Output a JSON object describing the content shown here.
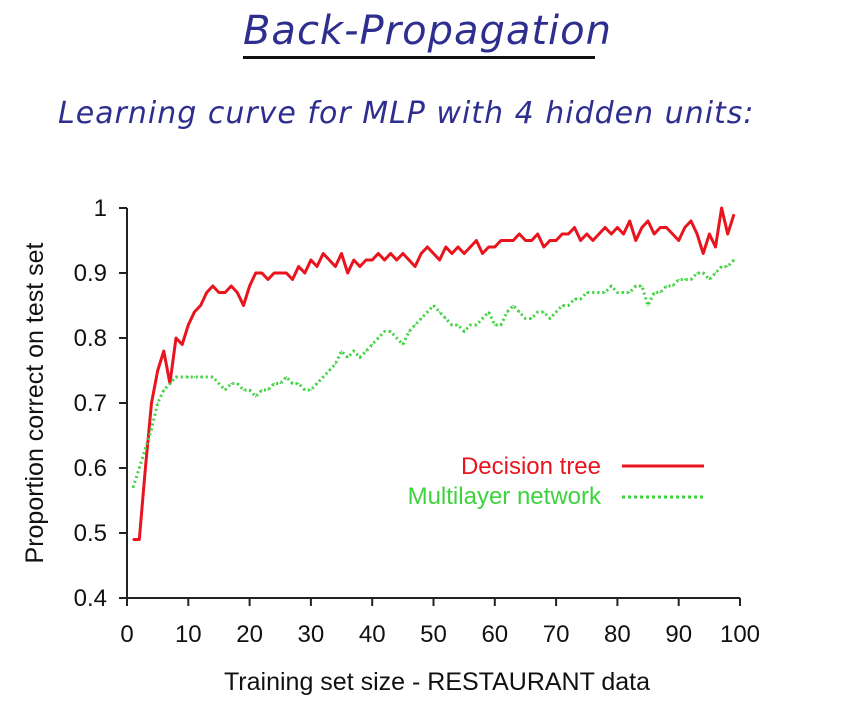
{
  "header": {
    "title": "Back-Propagation",
    "subtitle": "Learning curve for MLP with 4 hidden units:"
  },
  "chart_data": {
    "type": "line",
    "title": "",
    "xlabel": "Training set size - RESTAURANT data",
    "ylabel": "Proportion correct on test set",
    "xlim": [
      0,
      100
    ],
    "ylim": [
      0.4,
      1.0
    ],
    "xticks": [
      "0",
      "10",
      "20",
      "30",
      "40",
      "50",
      "60",
      "70",
      "80",
      "90",
      "100"
    ],
    "yticks": [
      "0.4",
      "0.5",
      "0.6",
      "0.7",
      "0.8",
      "0.9",
      "1"
    ],
    "grid": false,
    "legend_position": "right",
    "series": [
      {
        "name": "Decision tree",
        "color": "#e8141e",
        "style": "solid",
        "points": [
          [
            1,
            0.49
          ],
          [
            2,
            0.49
          ],
          [
            3,
            0.6
          ],
          [
            4,
            0.7
          ],
          [
            5,
            0.75
          ],
          [
            6,
            0.78
          ],
          [
            7,
            0.73
          ],
          [
            8,
            0.8
          ],
          [
            9,
            0.79
          ],
          [
            10,
            0.82
          ],
          [
            11,
            0.84
          ],
          [
            12,
            0.85
          ],
          [
            13,
            0.87
          ],
          [
            14,
            0.88
          ],
          [
            15,
            0.87
          ],
          [
            16,
            0.87
          ],
          [
            17,
            0.88
          ],
          [
            18,
            0.87
          ],
          [
            19,
            0.85
          ],
          [
            20,
            0.88
          ],
          [
            21,
            0.9
          ],
          [
            22,
            0.9
          ],
          [
            23,
            0.89
          ],
          [
            24,
            0.9
          ],
          [
            25,
            0.9
          ],
          [
            26,
            0.9
          ],
          [
            27,
            0.89
          ],
          [
            28,
            0.91
          ],
          [
            29,
            0.9
          ],
          [
            30,
            0.92
          ],
          [
            31,
            0.91
          ],
          [
            32,
            0.93
          ],
          [
            33,
            0.92
          ],
          [
            34,
            0.91
          ],
          [
            35,
            0.93
          ],
          [
            36,
            0.9
          ],
          [
            37,
            0.92
          ],
          [
            38,
            0.91
          ],
          [
            39,
            0.92
          ],
          [
            40,
            0.92
          ],
          [
            41,
            0.93
          ],
          [
            42,
            0.92
          ],
          [
            43,
            0.93
          ],
          [
            44,
            0.92
          ],
          [
            45,
            0.93
          ],
          [
            46,
            0.92
          ],
          [
            47,
            0.91
          ],
          [
            48,
            0.93
          ],
          [
            49,
            0.94
          ],
          [
            50,
            0.93
          ],
          [
            51,
            0.92
          ],
          [
            52,
            0.94
          ],
          [
            53,
            0.93
          ],
          [
            54,
            0.94
          ],
          [
            55,
            0.93
          ],
          [
            56,
            0.94
          ],
          [
            57,
            0.95
          ],
          [
            58,
            0.93
          ],
          [
            59,
            0.94
          ],
          [
            60,
            0.94
          ],
          [
            61,
            0.95
          ],
          [
            62,
            0.95
          ],
          [
            63,
            0.95
          ],
          [
            64,
            0.96
          ],
          [
            65,
            0.95
          ],
          [
            66,
            0.95
          ],
          [
            67,
            0.96
          ],
          [
            68,
            0.94
          ],
          [
            69,
            0.95
          ],
          [
            70,
            0.95
          ],
          [
            71,
            0.96
          ],
          [
            72,
            0.96
          ],
          [
            73,
            0.97
          ],
          [
            74,
            0.95
          ],
          [
            75,
            0.96
          ],
          [
            76,
            0.95
          ],
          [
            77,
            0.96
          ],
          [
            78,
            0.97
          ],
          [
            79,
            0.96
          ],
          [
            80,
            0.97
          ],
          [
            81,
            0.96
          ],
          [
            82,
            0.98
          ],
          [
            83,
            0.95
          ],
          [
            84,
            0.97
          ],
          [
            85,
            0.98
          ],
          [
            86,
            0.96
          ],
          [
            87,
            0.97
          ],
          [
            88,
            0.97
          ],
          [
            89,
            0.96
          ],
          [
            90,
            0.95
          ],
          [
            91,
            0.97
          ],
          [
            92,
            0.98
          ],
          [
            93,
            0.96
          ],
          [
            94,
            0.93
          ],
          [
            95,
            0.96
          ],
          [
            96,
            0.94
          ],
          [
            97,
            1.0
          ],
          [
            98,
            0.96
          ],
          [
            99,
            0.99
          ]
        ]
      },
      {
        "name": "Multilayer network",
        "color": "#3ed23e",
        "style": "dotted",
        "points": [
          [
            1,
            0.57
          ],
          [
            2,
            0.6
          ],
          [
            3,
            0.63
          ],
          [
            4,
            0.66
          ],
          [
            5,
            0.7
          ],
          [
            6,
            0.72
          ],
          [
            7,
            0.73
          ],
          [
            8,
            0.74
          ],
          [
            9,
            0.74
          ],
          [
            10,
            0.74
          ],
          [
            11,
            0.74
          ],
          [
            12,
            0.74
          ],
          [
            13,
            0.74
          ],
          [
            14,
            0.74
          ],
          [
            15,
            0.73
          ],
          [
            16,
            0.72
          ],
          [
            17,
            0.73
          ],
          [
            18,
            0.73
          ],
          [
            19,
            0.72
          ],
          [
            20,
            0.72
          ],
          [
            21,
            0.71
          ],
          [
            22,
            0.72
          ],
          [
            23,
            0.72
          ],
          [
            24,
            0.73
          ],
          [
            25,
            0.73
          ],
          [
            26,
            0.74
          ],
          [
            27,
            0.73
          ],
          [
            28,
            0.73
          ],
          [
            29,
            0.72
          ],
          [
            30,
            0.72
          ],
          [
            31,
            0.73
          ],
          [
            32,
            0.74
          ],
          [
            33,
            0.75
          ],
          [
            34,
            0.76
          ],
          [
            35,
            0.78
          ],
          [
            36,
            0.77
          ],
          [
            37,
            0.78
          ],
          [
            38,
            0.77
          ],
          [
            39,
            0.78
          ],
          [
            40,
            0.79
          ],
          [
            41,
            0.8
          ],
          [
            42,
            0.81
          ],
          [
            43,
            0.81
          ],
          [
            44,
            0.8
          ],
          [
            45,
            0.79
          ],
          [
            46,
            0.81
          ],
          [
            47,
            0.82
          ],
          [
            48,
            0.83
          ],
          [
            49,
            0.84
          ],
          [
            50,
            0.85
          ],
          [
            51,
            0.84
          ],
          [
            52,
            0.83
          ],
          [
            53,
            0.82
          ],
          [
            54,
            0.82
          ],
          [
            55,
            0.81
          ],
          [
            56,
            0.82
          ],
          [
            57,
            0.82
          ],
          [
            58,
            0.83
          ],
          [
            59,
            0.84
          ],
          [
            60,
            0.82
          ],
          [
            61,
            0.82
          ],
          [
            62,
            0.84
          ],
          [
            63,
            0.85
          ],
          [
            64,
            0.84
          ],
          [
            65,
            0.83
          ],
          [
            66,
            0.83
          ],
          [
            67,
            0.84
          ],
          [
            68,
            0.84
          ],
          [
            69,
            0.83
          ],
          [
            70,
            0.84
          ],
          [
            71,
            0.85
          ],
          [
            72,
            0.85
          ],
          [
            73,
            0.86
          ],
          [
            74,
            0.86
          ],
          [
            75,
            0.87
          ],
          [
            76,
            0.87
          ],
          [
            77,
            0.87
          ],
          [
            78,
            0.87
          ],
          [
            79,
            0.88
          ],
          [
            80,
            0.87
          ],
          [
            81,
            0.87
          ],
          [
            82,
            0.87
          ],
          [
            83,
            0.88
          ],
          [
            84,
            0.88
          ],
          [
            85,
            0.85
          ],
          [
            86,
            0.87
          ],
          [
            87,
            0.87
          ],
          [
            88,
            0.88
          ],
          [
            89,
            0.88
          ],
          [
            90,
            0.89
          ],
          [
            91,
            0.89
          ],
          [
            92,
            0.89
          ],
          [
            93,
            0.9
          ],
          [
            94,
            0.9
          ],
          [
            95,
            0.89
          ],
          [
            96,
            0.9
          ],
          [
            97,
            0.91
          ],
          [
            98,
            0.91
          ],
          [
            99,
            0.92
          ]
        ]
      }
    ]
  }
}
